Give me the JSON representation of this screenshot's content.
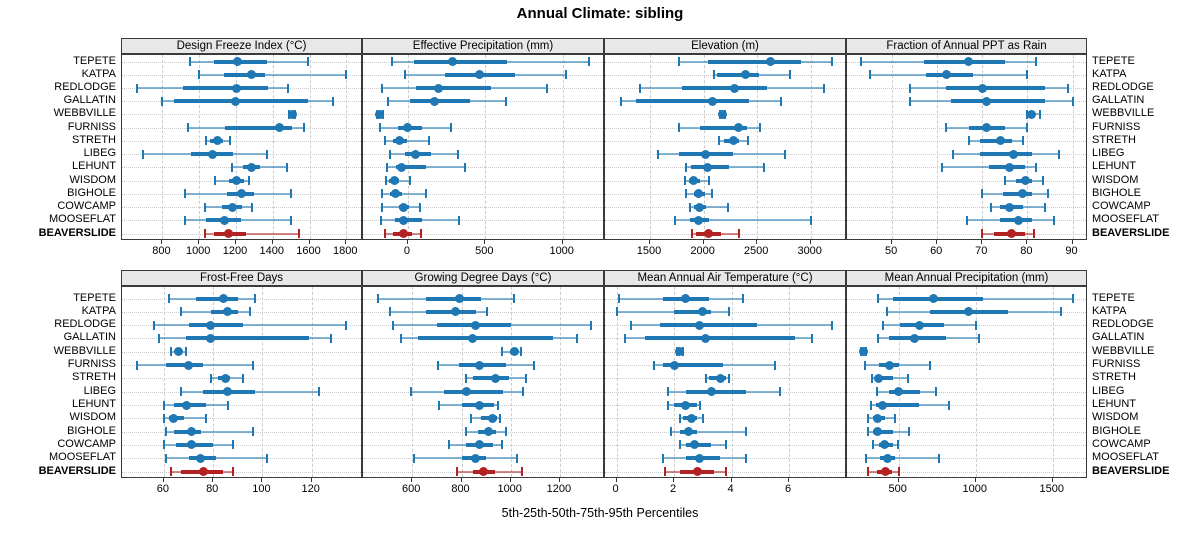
{
  "title": "Annual Climate: sibling",
  "caption": "5th-25th-50th-75th-95th Percentiles",
  "colors": {
    "series_blue": "#1F77B4",
    "series_red": "#B22222",
    "strip_bg": "#E8E8E8",
    "panel_border": "#3A3A3A",
    "grid": "#C9C9C9"
  },
  "chart_data": {
    "type": "scatter",
    "subtype": "percentile-dotplot-lattice",
    "percentiles_shown": [
      5,
      25,
      50,
      75,
      95
    ],
    "stations": [
      "TEPETE",
      "KATPA",
      "REDLODGE",
      "GALLATIN",
      "WEBBVILLE",
      "FURNISS",
      "STRETH",
      "LIBEG",
      "LEHUNT",
      "WISDOM",
      "BIGHOLE",
      "COWCAMP",
      "MOOSEFLAT",
      "BEAVERSLIDE"
    ],
    "highlight_station": "BEAVERSLIDE",
    "legend_position": "none",
    "grid": "on",
    "panels": [
      {
        "title": "Design Freeze Index (°C)",
        "xlim": [
          580,
          1880
        ],
        "ticks": [
          800,
          1000,
          1200,
          1400,
          1600,
          1800
        ],
        "values": [
          [
            950,
            1080,
            1210,
            1370,
            1590
          ],
          [
            1000,
            1135,
            1285,
            1360,
            1800
          ],
          [
            660,
            910,
            1205,
            1375,
            1480
          ],
          [
            795,
            865,
            1195,
            1590,
            1725
          ],
          [
            1490,
            1497,
            1505,
            1512,
            1520
          ],
          [
            940,
            1140,
            1435,
            1505,
            1570
          ],
          [
            1035,
            1060,
            1100,
            1130,
            1165
          ],
          [
            695,
            955,
            1070,
            1185,
            1370
          ],
          [
            1180,
            1240,
            1285,
            1330,
            1475
          ],
          [
            1085,
            1160,
            1205,
            1245,
            1270
          ],
          [
            925,
            1150,
            1230,
            1300,
            1500
          ],
          [
            1030,
            1125,
            1180,
            1235,
            1285
          ],
          [
            925,
            1035,
            1135,
            1230,
            1500
          ],
          [
            1030,
            1080,
            1160,
            1255,
            1540
          ]
        ]
      },
      {
        "title": "Effective Precipitation (mm)",
        "xlim": [
          -290,
          1260
        ],
        "ticks": [
          0,
          500,
          1000
        ],
        "values": [
          [
            -100,
            40,
            290,
            640,
            1170
          ],
          [
            -20,
            240,
            460,
            690,
            1020
          ],
          [
            -165,
            50,
            195,
            535,
            900
          ],
          [
            -130,
            10,
            170,
            400,
            630
          ],
          [
            -200,
            -193,
            -185,
            -176,
            -162
          ],
          [
            -180,
            -65,
            0,
            90,
            275
          ],
          [
            -150,
            -95,
            -55,
            -5,
            135
          ],
          [
            -115,
            -20,
            50,
            150,
            320
          ],
          [
            -135,
            -80,
            -40,
            115,
            370
          ],
          [
            -145,
            -120,
            -90,
            -55,
            15
          ],
          [
            -165,
            -115,
            -80,
            -40,
            115
          ],
          [
            -170,
            -60,
            -30,
            10,
            80
          ],
          [
            -175,
            -85,
            -30,
            90,
            330
          ],
          [
            -150,
            -95,
            -30,
            25,
            85
          ]
        ]
      },
      {
        "title": "Elevation (m)",
        "xlim": [
          1080,
          3320
        ],
        "ticks": [
          1500,
          2000,
          2500,
          3000
        ],
        "values": [
          [
            1770,
            2040,
            2620,
            2910,
            3200
          ],
          [
            2100,
            2125,
            2390,
            2520,
            2810
          ],
          [
            1410,
            1800,
            2290,
            2590,
            3120
          ],
          [
            1230,
            1370,
            2080,
            2420,
            2720
          ],
          [
            2155,
            2165,
            2175,
            2185,
            2195
          ],
          [
            1770,
            1970,
            2330,
            2410,
            2530
          ],
          [
            2140,
            2190,
            2280,
            2330,
            2410
          ],
          [
            1570,
            1770,
            2020,
            2280,
            2760
          ],
          [
            1840,
            1880,
            2040,
            2240,
            2560
          ],
          [
            1830,
            1860,
            1910,
            1970,
            2050
          ],
          [
            1840,
            1910,
            1950,
            2010,
            2080
          ],
          [
            1870,
            1910,
            1960,
            2020,
            2230
          ],
          [
            1730,
            1870,
            1950,
            2050,
            3000
          ],
          [
            1890,
            1930,
            2050,
            2160,
            2330
          ]
        ]
      },
      {
        "title": "Fraction of Annual PPT as Rain",
        "xlim": [
          40,
          93
        ],
        "ticks": [
          50,
          60,
          70,
          80,
          90
        ],
        "values": [
          [
            43,
            57,
            67,
            75,
            82
          ],
          [
            45,
            57.5,
            62,
            68,
            80
          ],
          [
            54,
            62,
            70,
            84,
            89
          ],
          [
            54,
            63,
            71,
            84,
            90
          ],
          [
            80,
            80.5,
            81,
            81.8,
            82.8
          ],
          [
            62,
            67,
            71,
            75,
            80
          ],
          [
            67,
            69.5,
            74,
            76.5,
            79
          ],
          [
            63.5,
            69.5,
            77,
            81,
            87
          ],
          [
            61,
            71.5,
            76,
            79.5,
            82
          ],
          [
            75,
            77.5,
            79.5,
            81,
            83.5
          ],
          [
            70,
            74.5,
            79,
            81,
            84.5
          ],
          [
            72,
            74,
            76,
            79,
            84
          ],
          [
            66.5,
            74,
            78,
            81,
            86
          ],
          [
            70,
            72.5,
            76.5,
            79.5,
            81.5
          ]
        ]
      },
      {
        "title": "Frost-Free Days",
        "xlim": [
          43,
          140
        ],
        "ticks": [
          60,
          80,
          100,
          120
        ],
        "values": [
          [
            62,
            73,
            84,
            90,
            97
          ],
          [
            67,
            79,
            86,
            90,
            95
          ],
          [
            56,
            70,
            79,
            92,
            134
          ],
          [
            58,
            69,
            79,
            119,
            128
          ],
          [
            63,
            64.5,
            66,
            67.5,
            69
          ],
          [
            49,
            61,
            70,
            76,
            96
          ],
          [
            79,
            82,
            85,
            87,
            92
          ],
          [
            67,
            76,
            86,
            97,
            123
          ],
          [
            60,
            64,
            69,
            77,
            86
          ],
          [
            60,
            62,
            64,
            68,
            77
          ],
          [
            61,
            64,
            71,
            75,
            96
          ],
          [
            60,
            65,
            71,
            80,
            88
          ],
          [
            61,
            70,
            75,
            81,
            102
          ],
          [
            63,
            67,
            76,
            84,
            88
          ]
        ]
      },
      {
        "title": "Growing Degree Days (°C)",
        "xlim": [
          400,
          1375
        ],
        "ticks": [
          600,
          800,
          1000,
          1200
        ],
        "values": [
          [
            460,
            655,
            790,
            880,
            1015
          ],
          [
            510,
            655,
            775,
            860,
            905
          ],
          [
            520,
            700,
            855,
            1000,
            1325
          ],
          [
            555,
            625,
            845,
            1170,
            1270
          ],
          [
            965,
            995,
            1015,
            1030,
            1040
          ],
          [
            705,
            790,
            875,
            980,
            1095
          ],
          [
            820,
            845,
            940,
            995,
            1060
          ],
          [
            595,
            730,
            820,
            970,
            1050
          ],
          [
            710,
            800,
            875,
            930,
            950
          ],
          [
            840,
            880,
            925,
            945,
            955
          ],
          [
            820,
            865,
            910,
            940,
            980
          ],
          [
            750,
            820,
            875,
            930,
            965
          ],
          [
            605,
            800,
            855,
            900,
            1025
          ],
          [
            780,
            845,
            890,
            935,
            1045
          ]
        ]
      },
      {
        "title": "Mean Annual Air Temperature (°C)",
        "xlim": [
          -0.4,
          7.95
        ],
        "ticks": [
          0,
          2,
          4,
          6
        ],
        "values": [
          [
            0.1,
            1.6,
            2.4,
            3.2,
            4.4
          ],
          [
            0.0,
            2.0,
            3.0,
            3.3,
            3.9
          ],
          [
            0.5,
            1.5,
            2.9,
            4.9,
            7.5
          ],
          [
            0.3,
            1.0,
            3.1,
            6.2,
            6.8
          ],
          [
            2.1,
            2.15,
            2.2,
            2.25,
            2.3
          ],
          [
            1.3,
            1.6,
            2.0,
            3.7,
            5.5
          ],
          [
            3.1,
            3.2,
            3.6,
            3.8,
            3.9
          ],
          [
            1.8,
            2.4,
            3.3,
            4.5,
            5.7
          ],
          [
            1.8,
            2.0,
            2.4,
            2.8,
            2.9
          ],
          [
            2.2,
            2.3,
            2.6,
            2.8,
            3.0
          ],
          [
            1.9,
            2.2,
            2.5,
            2.8,
            4.5
          ],
          [
            2.2,
            2.4,
            2.7,
            3.3,
            3.8
          ],
          [
            1.6,
            2.4,
            2.9,
            3.6,
            4.5
          ],
          [
            1.7,
            2.2,
            2.8,
            3.4,
            3.8
          ]
        ]
      },
      {
        "title": "Mean Annual Precipitation (mm)",
        "xlim": [
          165,
          1715
        ],
        "ticks": [
          500,
          1000,
          1500
        ],
        "values": [
          [
            365,
            460,
            725,
            1045,
            1630
          ],
          [
            425,
            700,
            955,
            1210,
            1555
          ],
          [
            400,
            510,
            635,
            795,
            1000
          ],
          [
            365,
            440,
            605,
            810,
            1020
          ],
          [
            255,
            262,
            270,
            278,
            287
          ],
          [
            280,
            375,
            440,
            500,
            700
          ],
          [
            330,
            350,
            370,
            460,
            560
          ],
          [
            360,
            435,
            500,
            640,
            745
          ],
          [
            320,
            355,
            395,
            635,
            825
          ],
          [
            300,
            335,
            365,
            415,
            475
          ],
          [
            300,
            335,
            365,
            465,
            565
          ],
          [
            335,
            375,
            410,
            465,
            495
          ],
          [
            290,
            380,
            430,
            475,
            760
          ],
          [
            300,
            360,
            415,
            460,
            500
          ]
        ]
      }
    ]
  }
}
